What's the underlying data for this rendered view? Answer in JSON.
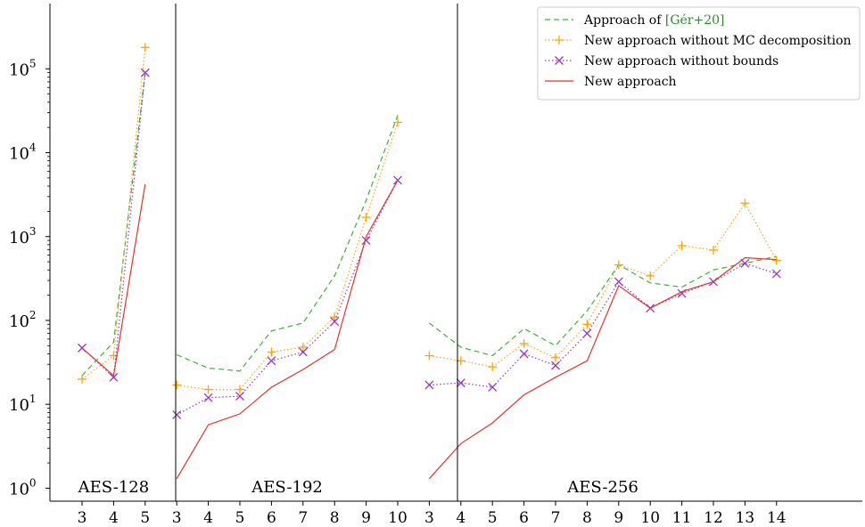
{
  "chart_data": {
    "type": "line",
    "y_scale": "log",
    "ylim": [
      0.7,
      600000
    ],
    "y_ticks": [
      {
        "value": 1,
        "base": "10",
        "exp": "0"
      },
      {
        "value": 10,
        "base": "10",
        "exp": "1"
      },
      {
        "value": 100,
        "base": "10",
        "exp": "2"
      },
      {
        "value": 1000,
        "base": "10",
        "exp": "3"
      },
      {
        "value": 10000,
        "base": "10",
        "exp": "4"
      },
      {
        "value": 100000,
        "base": "10",
        "exp": "5"
      }
    ],
    "grid": false,
    "legend_position": "top-right",
    "legend": {
      "cite_prefix": "Approach of ",
      "cite_ref": "[Gér+20]",
      "cite_color": "#2e8b2e"
    },
    "styles": [
      {
        "color": "#3cb03c",
        "dash": "6,4",
        "marker": "none"
      },
      {
        "color": "#ffa500",
        "dash": "1.5,2.5",
        "marker": "plus"
      },
      {
        "color": "#9932cc",
        "dash": "1.5,2.5",
        "marker": "x"
      },
      {
        "color": "#e8322b",
        "dash": "",
        "marker": "none"
      }
    ],
    "series_names": [
      "Approach of [Gér+20]",
      "New approach without MC decomposition",
      "New approach without bounds",
      "New approach"
    ],
    "panels": [
      {
        "label": "AES-128",
        "x": [
          3,
          4,
          5
        ],
        "series": [
          {
            "values": [
              22,
              55,
              90000
            ]
          },
          {
            "values": [
              20,
              38,
              180000
            ]
          },
          {
            "values": [
              47,
              21,
              90000
            ]
          },
          {
            "values": [
              47,
              22,
              4200
            ]
          }
        ]
      },
      {
        "label": "AES-192",
        "x": [
          3,
          4,
          5,
          6,
          7,
          8,
          9,
          10
        ],
        "series": [
          {
            "values": [
              39,
              27,
              25,
              75,
              93,
              340,
              2700,
              28000
            ]
          },
          {
            "values": [
              17,
              15,
              15,
              42,
              48,
              110,
              1700,
              23000
            ]
          },
          {
            "values": [
              7.5,
              12,
              12.5,
              33,
              42,
              97,
              900,
              4700
            ]
          },
          {
            "values": [
              1.3,
              5.7,
              7.7,
              16,
              26,
              45,
              1000,
              4700
            ]
          }
        ]
      },
      {
        "label": "AES-256",
        "x": [
          3,
          4,
          5,
          6,
          7,
          8,
          9,
          10,
          11,
          12,
          13,
          14
        ],
        "series": [
          {
            "values": [
              93,
              48,
              38,
              80,
              50,
              130,
              460,
              280,
              250,
              400,
              480,
              580
            ]
          },
          {
            "values": [
              38,
              33,
              28,
              53,
              36,
              90,
              460,
              340,
              780,
              690,
              2500,
              520
            ]
          },
          {
            "values": [
              17,
              18,
              16,
              40,
              29,
              70,
              290,
              140,
              210,
              290,
              480,
              360
            ]
          },
          {
            "values": [
              1.3,
              3.4,
              6,
              13,
              21,
              33,
              260,
              140,
              220,
              290,
              560,
              530
            ]
          }
        ]
      }
    ]
  }
}
